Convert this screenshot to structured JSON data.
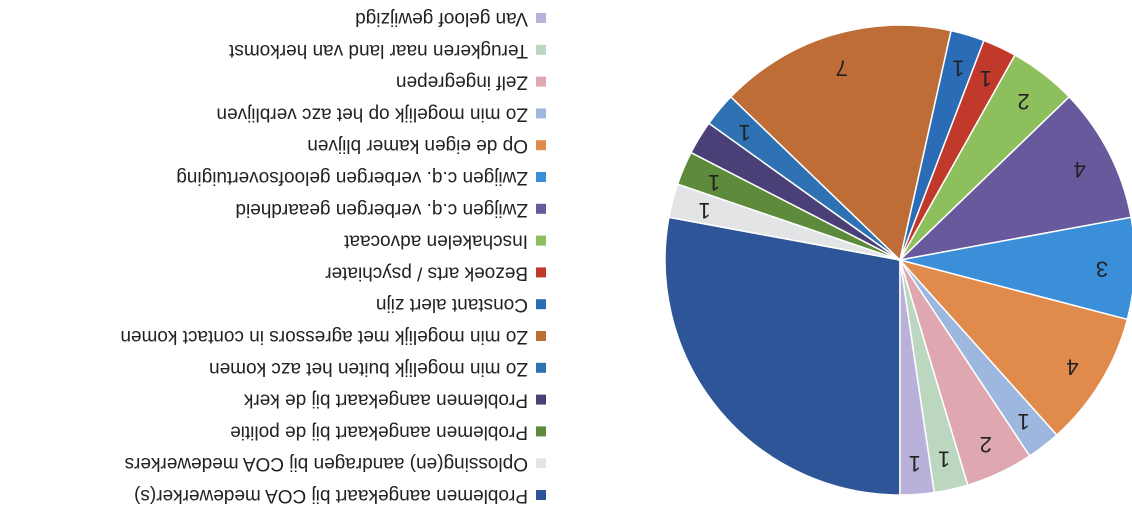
{
  "chart_data": {
    "type": "pie",
    "categories": [
      "Problemen aangekaart bij COA medewerker(s)",
      "Oplossing(en) aandragen bij COA medewerkers",
      "Problemen aangekaart bij de politie",
      "Problemen aangekaart bij de kerk",
      "Zo min mogelijk buiten het azc komen",
      "Zo min mogelijk met agressors in contact komen",
      "Constant alert zijn",
      "Bezoek arts / psychiater",
      "Inschakelen advocaat",
      "Zwijgen c.q. verbergen geaardheid",
      "Zwijgen c.q. verbergen geloofsovertuiging",
      "Op de eigen kamer blijven",
      "Zo min mogelijk op het azc verblijven",
      "Zelf ingegrepen",
      "Terugkeren naar land van herkomst",
      "Van geloof gewijzigd"
    ],
    "values": [
      12,
      1,
      1,
      1,
      1,
      7,
      1,
      1,
      2,
      4,
      3,
      4,
      1,
      2,
      1,
      1
    ],
    "value_labels": [
      null,
      "1",
      "1",
      null,
      "1",
      "7",
      "1",
      "1",
      "2",
      "4",
      "3",
      "4",
      "1",
      "2",
      "1",
      "1"
    ],
    "colors": [
      "#2e5597",
      "#e2e4e6",
      "#5e8a3c",
      "#4b3f78",
      "#2f72b4",
      "#bd6d35",
      "#2b6cb6",
      "#c0392b",
      "#8dbf5c",
      "#68589c",
      "#3b8ed8",
      "#e08a4c",
      "#9db7df",
      "#dfa7b0",
      "#bcd7c0",
      "#b9b1d9"
    ],
    "legend": "right"
  }
}
